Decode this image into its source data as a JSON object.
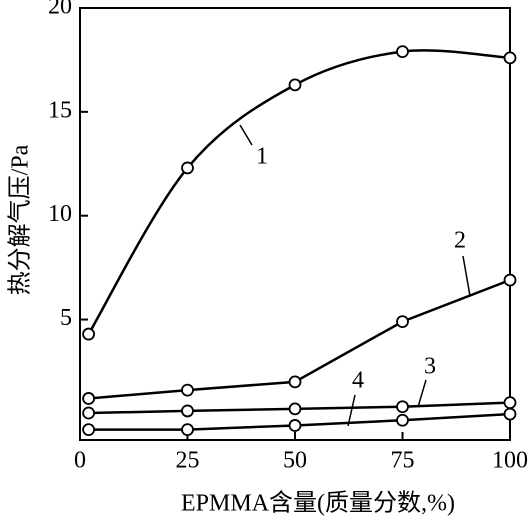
{
  "chart_data": {
    "type": "line",
    "x_label": "EPMMA含量(质量分数,%)",
    "y_label": "热分解气压/Pa",
    "x": [
      2,
      25,
      50,
      75,
      100
    ],
    "series": [
      {
        "name": "1",
        "color": "#000000",
        "smooth": true,
        "values": [
          4.3,
          12.3,
          16.3,
          17.9,
          17.6
        ]
      },
      {
        "name": "2",
        "color": "#000000",
        "values": [
          1.2,
          1.6,
          2.0,
          4.9,
          6.9
        ]
      },
      {
        "name": "3",
        "color": "#000000",
        "values": [
          0.5,
          0.6,
          0.7,
          0.8,
          1.0
        ]
      },
      {
        "name": "4",
        "color": "#000000",
        "values": [
          -0.3,
          -0.3,
          -0.1,
          0.15,
          0.45
        ]
      }
    ],
    "xlim": [
      0,
      100
    ],
    "xticks": [
      0,
      25,
      50,
      75,
      100
    ],
    "ylim": [
      -0.8,
      20
    ],
    "yticks": [
      5,
      10,
      15,
      20
    ]
  }
}
